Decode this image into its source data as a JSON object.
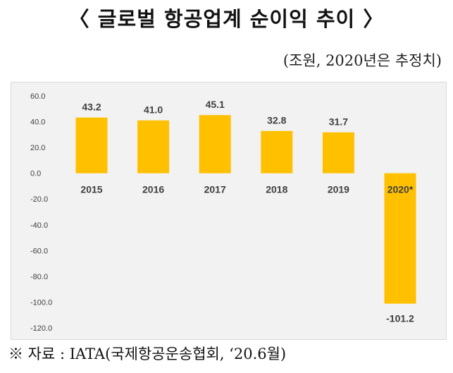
{
  "title": "〈 글로벌 항공업계 순이익 추이 〉",
  "subtitle": "(조원, 2020년은 추정치)",
  "source": "※ 자료 : IATA(국제항공운송협회, ‘20.6월)",
  "colors": {
    "bar": "#ffc000",
    "background": "#f2f2f2",
    "text": "#404040"
  },
  "chart_data": {
    "type": "bar",
    "title": "〈 글로벌 항공업계 순이익 추이 〉",
    "subtitle": "(조원, 2020년은 추정치)",
    "categories": [
      "2015",
      "2016",
      "2017",
      "2018",
      "2019",
      "2020*"
    ],
    "values": [
      43.2,
      41.0,
      45.1,
      32.8,
      31.7,
      -101.2
    ],
    "value_labels": [
      "43.2",
      "41.0",
      "45.1",
      "32.8",
      "31.7",
      "-101.2"
    ],
    "ylim": [
      -120,
      60
    ],
    "yticks": [
      60,
      40,
      20,
      0,
      -20,
      -40,
      -60,
      -80,
      -100,
      -120
    ],
    "ytick_labels": [
      "60.0",
      "40.0",
      "20.0",
      "0.0",
      "-20.0",
      "-40.0",
      "-60.0",
      "-80.0",
      "-100.0",
      "-120.0"
    ],
    "xlabel": "",
    "ylabel": "",
    "grid": false,
    "legend": "none"
  }
}
